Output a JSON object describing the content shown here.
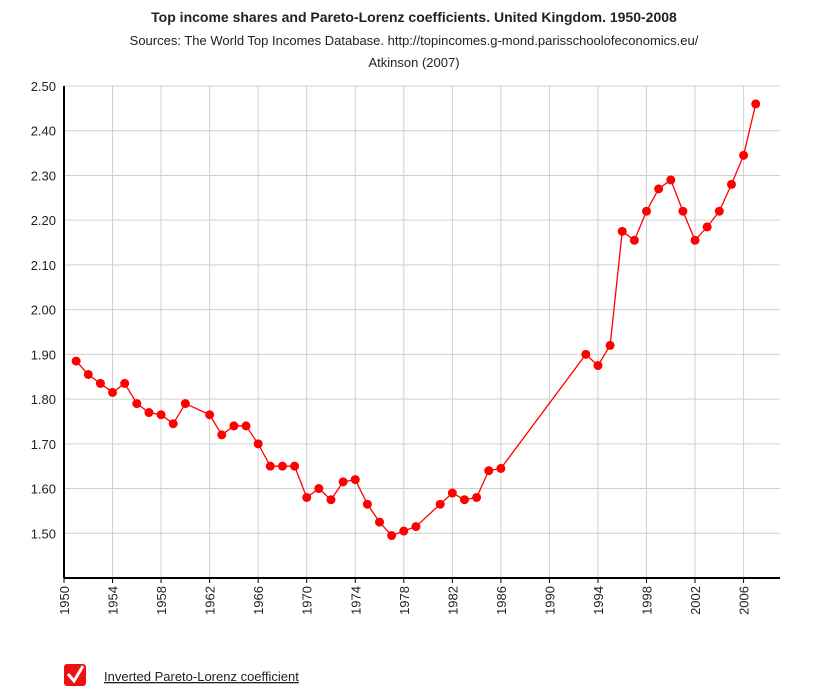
{
  "chart_data": {
    "type": "line",
    "title": "Top income shares and Pareto-Lorenz coefficients. United Kingdom. 1950-2008",
    "subtitle": [
      "Sources: The World Top Incomes Database. http://topincomes.g-mond.parisschoolofeconomics.eu/",
      "Atkinson (2007)"
    ],
    "x": [
      1951,
      1952,
      1953,
      1954,
      1955,
      1956,
      1957,
      1958,
      1959,
      1960,
      1962,
      1963,
      1964,
      1965,
      1966,
      1967,
      1968,
      1969,
      1970,
      1971,
      1972,
      1973,
      1974,
      1975,
      1976,
      1977,
      1978,
      1979,
      1981,
      1982,
      1983,
      1984,
      1985,
      1986,
      1993,
      1994,
      1995,
      1996,
      1997,
      1998,
      1999,
      2000,
      2001,
      2002,
      2003,
      2004,
      2005,
      2006,
      2007
    ],
    "series": [
      {
        "name": "Inverted Pareto-Lorenz coefficient",
        "color": "#ff0000",
        "values": [
          1.885,
          1.855,
          1.835,
          1.815,
          1.835,
          1.79,
          1.77,
          1.765,
          1.745,
          1.79,
          1.765,
          1.72,
          1.74,
          1.74,
          1.7,
          1.65,
          1.65,
          1.65,
          1.58,
          1.6,
          1.575,
          1.615,
          1.62,
          1.565,
          1.525,
          1.495,
          1.505,
          1.515,
          1.565,
          1.59,
          1.575,
          1.58,
          1.64,
          1.645,
          1.9,
          1.875,
          1.92,
          2.175,
          2.155,
          2.22,
          2.27,
          2.29,
          2.22,
          2.155,
          2.185,
          2.22,
          2.28,
          2.345,
          2.46
        ]
      }
    ],
    "xlim": [
      1950,
      2009
    ],
    "xticks": [
      1950,
      1954,
      1958,
      1962,
      1966,
      1970,
      1974,
      1978,
      1982,
      1986,
      1990,
      1994,
      1998,
      2002,
      2006
    ],
    "ylim": [
      1.4,
      2.5
    ],
    "yticks": [
      {
        "value": 1.5,
        "label": "1.50"
      },
      {
        "value": 1.6,
        "label": "1.60"
      },
      {
        "value": 1.7,
        "label": "1.70"
      },
      {
        "value": 1.8,
        "label": "1.80"
      },
      {
        "value": 1.9,
        "label": "1.90"
      },
      {
        "value": 2.0,
        "label": "2.00"
      },
      {
        "value": 2.1,
        "label": "2.10"
      },
      {
        "value": 2.2,
        "label": "2.20"
      },
      {
        "value": 2.3,
        "label": "2.30"
      },
      {
        "value": 2.4,
        "label": "2.40"
      },
      {
        "value": 2.5,
        "label": "2.50"
      }
    ],
    "grid": true
  }
}
